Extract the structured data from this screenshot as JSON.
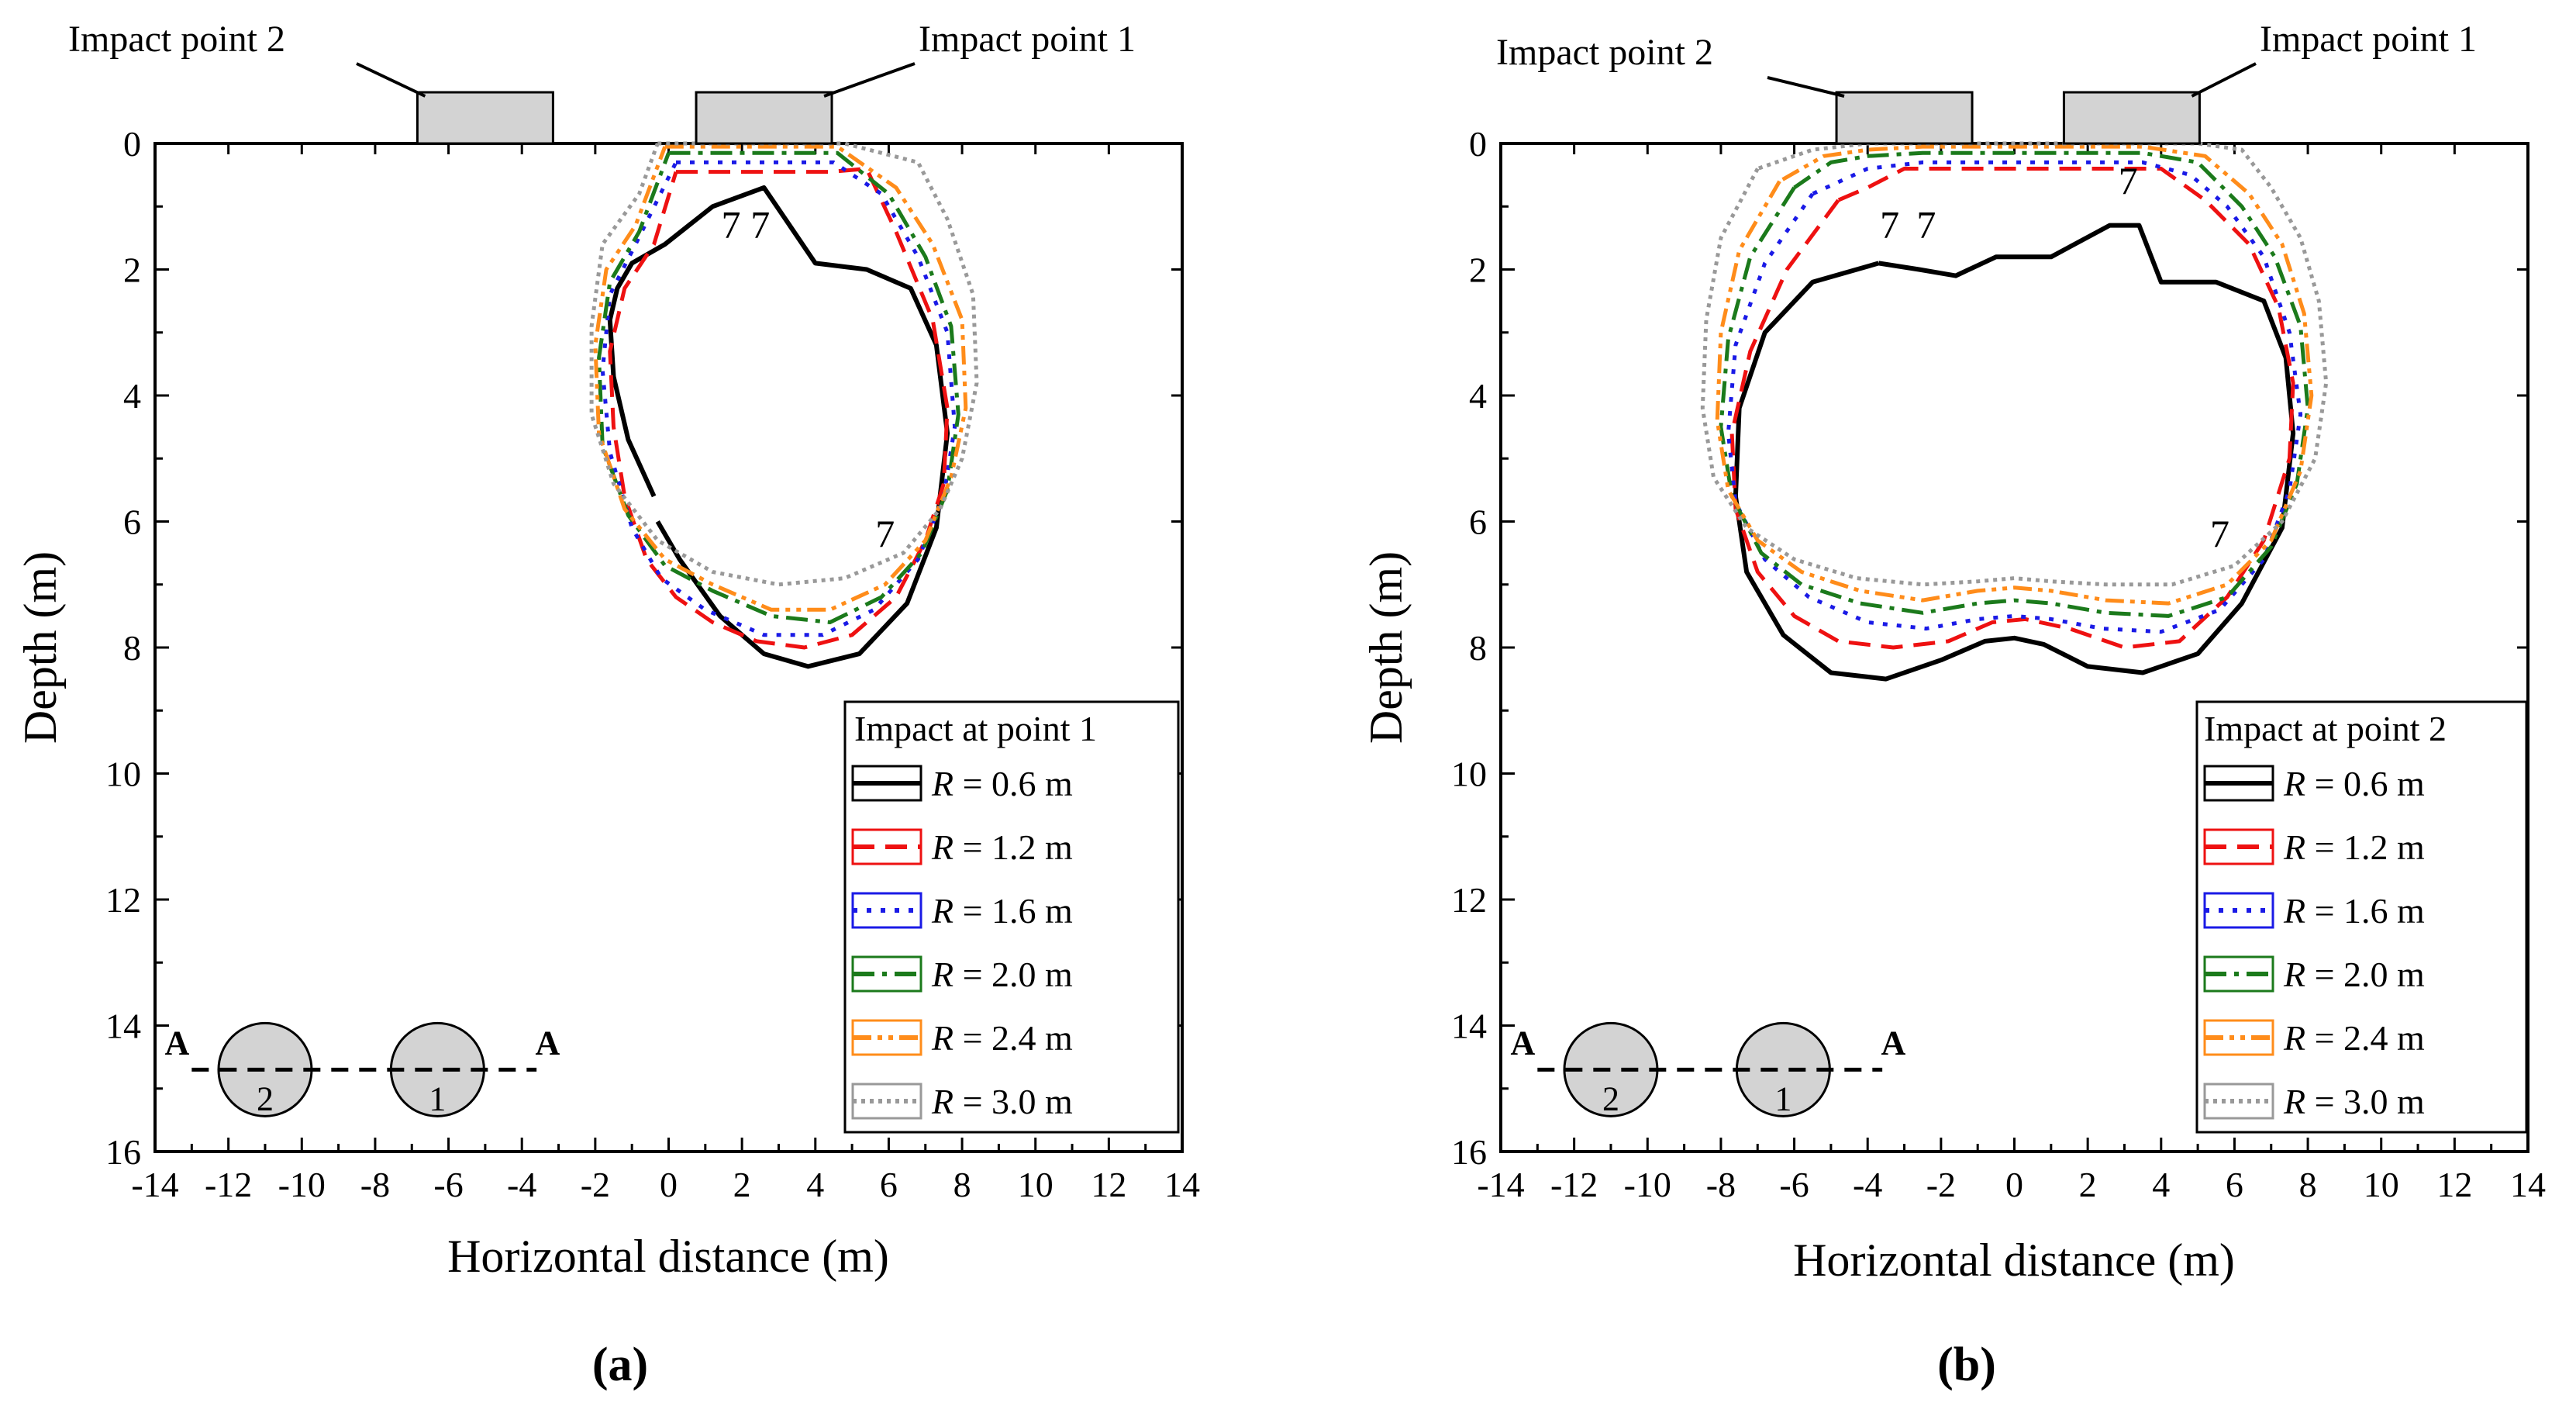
{
  "chart_data": [
    {
      "type": "line",
      "panel_label": "(a)",
      "xlabel": "Horizontal distance (m)",
      "ylabel": "Depth (m)",
      "xlim": [
        -14,
        14
      ],
      "ylim": [
        16,
        0
      ],
      "xticks": [
        -14,
        -12,
        -10,
        -8,
        -6,
        -4,
        -2,
        0,
        2,
        4,
        6,
        8,
        10,
        12,
        14
      ],
      "yticks": [
        0,
        2,
        4,
        6,
        8,
        10,
        12,
        14,
        16
      ],
      "tick_labels_x": [
        "-14",
        "-12",
        "-10",
        "-8",
        "-6",
        "-4",
        "-2",
        "0",
        "2",
        "4",
        "6",
        "8",
        "10",
        "12",
        "14"
      ],
      "tick_labels_y": [
        "0",
        "2",
        "4",
        "6",
        "8",
        "10",
        "12",
        "14",
        "16"
      ],
      "annotations": {
        "impact_point_1": "Impact point 1",
        "impact_point_2": "Impact point 2",
        "impact_point_1_x": 2.6,
        "impact_point_2_x": -5.0,
        "section_left": "A",
        "section_right": "A",
        "tunnel_1_label": "1",
        "tunnel_2_label": "2",
        "tunnel_1_x": -6.3,
        "tunnel_2_x": -11.0,
        "tunnel_depth": 14.7,
        "tunnel_1_label_color": "#e00000",
        "tunnel_2_label_color": "#000000",
        "contour_value": "7",
        "contour_labels": [
          [
            1.7,
            1.3
          ],
          [
            2.5,
            1.3
          ],
          [
            5.9,
            6.2
          ]
        ]
      },
      "legend": {
        "title": "Impact at point 1",
        "position": "bottom-right",
        "entries": [
          {
            "label": "= 0.6 m",
            "color": "#000000",
            "dash": "solid"
          },
          {
            "label": "= 1.2 m",
            "color": "#ee1111",
            "dash": "dash"
          },
          {
            "label": "= 1.6 m",
            "color": "#1a1ae6",
            "dash": "dot"
          },
          {
            "label": "= 2.0 m",
            "color": "#1b7a1b",
            "dash": "dashdot"
          },
          {
            "label": "= 2.4 m",
            "color": "#ff8c1a",
            "dash": "dashdotdot"
          },
          {
            "label": "= 3.0 m",
            "color": "#999999",
            "dash": "shortdot"
          }
        ]
      },
      "series": [
        {
          "name": "R = 0.6 m",
          "color": "#000000",
          "x": [
            -0.4,
            -1.1,
            -1.5,
            -1.6,
            -1.4,
            -1.0,
            -0.1,
            1.2,
            2.6,
            4.0,
            5.4,
            6.6,
            7.3,
            7.6,
            7.3,
            6.5,
            5.2,
            3.8,
            2.6,
            1.4,
            0.3,
            -0.3
          ],
          "y": [
            5.6,
            4.7,
            3.7,
            2.8,
            2.3,
            1.9,
            1.6,
            1.0,
            0.7,
            1.9,
            2.0,
            2.3,
            3.2,
            4.6,
            6.1,
            7.3,
            8.1,
            8.3,
            8.1,
            7.5,
            6.6,
            6.0
          ]
        },
        {
          "name": "R = 1.2 m",
          "color": "#ee1111",
          "x": [
            0.2,
            1.2,
            2.4,
            3.5,
            4.4,
            5.4,
            6.2,
            7.2,
            7.6,
            7.5,
            7.0,
            6.2,
            5.0,
            3.7,
            2.4,
            1.2,
            0.2,
            -0.6,
            -1.2,
            -1.5,
            -1.6,
            -1.2,
            -0.4,
            0.2
          ],
          "y": [
            0.45,
            0.45,
            0.45,
            0.45,
            0.45,
            0.4,
            1.4,
            2.8,
            4.2,
            5.4,
            6.3,
            7.2,
            7.8,
            8.0,
            7.9,
            7.6,
            7.2,
            6.6,
            5.6,
            4.5,
            3.3,
            2.3,
            1.6,
            0.45
          ]
        },
        {
          "name": "R = 1.6 m",
          "color": "#1a1ae6",
          "x": [
            0.2,
            1.5,
            3.0,
            4.5,
            5.8,
            6.8,
            7.6,
            7.8,
            7.5,
            6.8,
            5.6,
            4.2,
            2.6,
            1.0,
            -0.2,
            -1.0,
            -1.6,
            -1.8,
            -1.6,
            -0.9,
            0.2
          ],
          "y": [
            0.3,
            0.3,
            0.3,
            0.3,
            0.8,
            1.8,
            3.0,
            4.5,
            5.6,
            6.6,
            7.4,
            7.8,
            7.8,
            7.4,
            6.9,
            6.1,
            4.9,
            3.6,
            2.4,
            1.6,
            0.3
          ]
        },
        {
          "name": "R = 2.0 m",
          "color": "#1b7a1b",
          "x": [
            0.0,
            1.6,
            3.0,
            4.6,
            6.0,
            7.0,
            7.7,
            7.9,
            7.6,
            6.9,
            5.8,
            4.4,
            2.8,
            1.2,
            -0.1,
            -1.1,
            -1.8,
            -1.9,
            -1.6,
            -0.8,
            0.0
          ],
          "y": [
            0.15,
            0.15,
            0.15,
            0.15,
            0.8,
            1.8,
            2.9,
            4.3,
            5.5,
            6.5,
            7.2,
            7.6,
            7.5,
            7.1,
            6.7,
            5.9,
            4.8,
            3.4,
            2.2,
            1.4,
            0.15
          ]
        },
        {
          "name": "R = 2.4 m",
          "color": "#ff8c1a",
          "x": [
            -0.1,
            1.5,
            3.0,
            4.6,
            6.2,
            7.2,
            8.0,
            8.1,
            7.7,
            7.0,
            5.9,
            4.4,
            2.8,
            1.2,
            -0.1,
            -1.2,
            -1.9,
            -2.0,
            -1.7,
            -0.9,
            -0.1
          ],
          "y": [
            0.05,
            0.05,
            0.05,
            0.05,
            0.7,
            1.6,
            2.8,
            4.2,
            5.3,
            6.3,
            7.0,
            7.4,
            7.4,
            7.0,
            6.6,
            5.8,
            4.6,
            3.2,
            2.0,
            1.3,
            0.05
          ]
        },
        {
          "name": "R = 3.0 m",
          "color": "#999999",
          "x": [
            -0.3,
            1.5,
            3.0,
            4.8,
            6.8,
            7.6,
            8.3,
            8.4,
            8.0,
            7.4,
            6.4,
            4.8,
            3.0,
            1.2,
            -0.3,
            -1.5,
            -2.1,
            -2.1,
            -1.8,
            -0.8,
            -0.3
          ],
          "y": [
            0.0,
            0.0,
            0.0,
            0.0,
            0.3,
            1.2,
            2.4,
            3.8,
            5.0,
            5.8,
            6.5,
            6.9,
            7.0,
            6.8,
            6.3,
            5.4,
            4.3,
            2.9,
            1.6,
            0.8,
            0.0
          ]
        }
      ]
    },
    {
      "type": "line",
      "panel_label": "(b)",
      "xlabel": "Horizontal distance (m)",
      "ylabel": "Depth (m)",
      "xlim": [
        -14,
        14
      ],
      "ylim": [
        16,
        0
      ],
      "xticks": [
        -14,
        -12,
        -10,
        -8,
        -6,
        -4,
        -2,
        0,
        2,
        4,
        6,
        8,
        10,
        12,
        14
      ],
      "yticks": [
        0,
        2,
        4,
        6,
        8,
        10,
        12,
        14,
        16
      ],
      "tick_labels_x": [
        "-14",
        "-12",
        "-10",
        "-8",
        "-6",
        "-4",
        "-2",
        "0",
        "2",
        "4",
        "6",
        "8",
        "10",
        "12",
        "14"
      ],
      "tick_labels_y": [
        "0",
        "2",
        "4",
        "6",
        "8",
        "10",
        "12",
        "14",
        "16"
      ],
      "annotations": {
        "impact_point_1": "Impact point 1",
        "impact_point_2": "Impact point 2",
        "impact_point_1_x": 3.2,
        "impact_point_2_x": -3.0,
        "section_left": "A",
        "section_right": "A",
        "tunnel_1_label": "1",
        "tunnel_2_label": "2",
        "tunnel_1_x": -6.3,
        "tunnel_2_x": -11.0,
        "tunnel_depth": 14.7,
        "tunnel_1_label_color": "#e00000",
        "tunnel_2_label_color": "#e00000",
        "contour_value": "7",
        "contour_labels": [
          [
            -3.4,
            1.3
          ],
          [
            -2.4,
            1.3
          ],
          [
            3.1,
            0.6
          ],
          [
            5.6,
            6.2
          ]
        ]
      },
      "legend": {
        "title": "Impact at point 2",
        "position": "bottom-right",
        "entries": [
          {
            "label": "= 0.6 m",
            "color": "#000000",
            "dash": "solid"
          },
          {
            "label": "= 1.2 m",
            "color": "#ee1111",
            "dash": "dash"
          },
          {
            "label": "= 1.6 m",
            "color": "#1a1ae6",
            "dash": "dot"
          },
          {
            "label": "= 2.0 m",
            "color": "#1b7a1b",
            "dash": "dashdot"
          },
          {
            "label": "= 2.4 m",
            "color": "#ff8c1a",
            "dash": "dashdotdot"
          },
          {
            "label": "= 3.0 m",
            "color": "#999999",
            "dash": "shortdot"
          }
        ]
      },
      "series": [
        {
          "name": "R = 0.6 m",
          "color": "#000000",
          "x": [
            -3.7,
            -5.5,
            -6.8,
            -7.5,
            -7.6,
            -7.3,
            -6.3,
            -5.0,
            -3.5,
            -2.0,
            -0.8,
            0.0,
            0.8,
            2.0,
            3.5,
            5.0,
            6.2,
            7.3,
            7.6,
            7.4,
            6.8,
            5.5,
            4.0,
            3.4,
            2.6,
            1.0,
            -0.5,
            -1.6,
            -2.6,
            -3.7
          ],
          "y": [
            1.9,
            2.2,
            3.0,
            4.2,
            5.6,
            6.8,
            7.8,
            8.4,
            8.5,
            8.2,
            7.9,
            7.85,
            7.95,
            8.3,
            8.4,
            8.1,
            7.3,
            6.1,
            4.6,
            3.4,
            2.5,
            2.2,
            2.2,
            1.3,
            1.3,
            1.8,
            1.8,
            2.1,
            2.0,
            1.9
          ]
        },
        {
          "name": "R = 1.2 m",
          "color": "#ee1111",
          "x": [
            -4.8,
            -6.2,
            -7.2,
            -7.7,
            -7.6,
            -7.0,
            -6.0,
            -4.8,
            -3.3,
            -1.8,
            -0.6,
            0.3,
            1.5,
            3.0,
            4.5,
            5.8,
            6.8,
            7.5,
            7.6,
            7.2,
            6.4,
            5.2,
            4.0,
            3.0,
            2.0,
            1.0,
            0.0,
            -1.0,
            -2.0,
            -3.0,
            -4.0,
            -4.8
          ],
          "y": [
            0.9,
            2.0,
            3.3,
            4.6,
            5.8,
            6.8,
            7.5,
            7.9,
            8.0,
            7.9,
            7.6,
            7.55,
            7.7,
            8.0,
            7.9,
            7.2,
            6.3,
            5.0,
            3.8,
            2.6,
            1.6,
            0.9,
            0.4,
            0.4,
            0.4,
            0.4,
            0.4,
            0.4,
            0.4,
            0.4,
            0.7,
            0.9
          ]
        },
        {
          "name": "R = 1.6 m",
          "color": "#1a1ae6",
          "x": [
            -5.5,
            -6.8,
            -7.6,
            -7.8,
            -7.6,
            -6.8,
            -5.6,
            -4.0,
            -2.4,
            -1.0,
            0.0,
            1.0,
            2.4,
            4.0,
            5.6,
            6.8,
            7.5,
            7.8,
            7.5,
            6.8,
            5.8,
            4.8,
            3.5,
            2.0,
            0.5,
            -1.0,
            -2.5,
            -4.0,
            -5.5
          ],
          "y": [
            0.8,
            1.9,
            3.2,
            4.6,
            5.7,
            6.6,
            7.2,
            7.6,
            7.7,
            7.55,
            7.5,
            7.55,
            7.7,
            7.75,
            7.4,
            6.6,
            5.5,
            4.3,
            3.0,
            1.8,
            1.0,
            0.5,
            0.3,
            0.3,
            0.3,
            0.3,
            0.3,
            0.4,
            0.8
          ]
        },
        {
          "name": "R = 2.0 m",
          "color": "#1b7a1b",
          "x": [
            -6.0,
            -7.2,
            -7.8,
            -8.0,
            -7.7,
            -6.9,
            -5.8,
            -4.2,
            -2.5,
            -1.0,
            0.0,
            1.0,
            2.5,
            4.2,
            5.8,
            7.0,
            7.7,
            8.0,
            7.8,
            7.1,
            6.2,
            5.0,
            3.5,
            2.0,
            0.5,
            -1.0,
            -2.5,
            -4.0,
            -5.0,
            -6.0
          ],
          "y": [
            0.7,
            1.8,
            3.1,
            4.5,
            5.6,
            6.5,
            7.0,
            7.3,
            7.45,
            7.3,
            7.25,
            7.3,
            7.45,
            7.5,
            7.2,
            6.4,
            5.4,
            4.2,
            2.9,
            1.8,
            1.0,
            0.3,
            0.15,
            0.15,
            0.15,
            0.15,
            0.15,
            0.2,
            0.3,
            0.7
          ]
        },
        {
          "name": "R = 2.4 m",
          "color": "#ff8c1a",
          "x": [
            -6.4,
            -7.5,
            -8.0,
            -8.1,
            -7.8,
            -7.0,
            -5.8,
            -4.2,
            -2.5,
            -1.0,
            0.0,
            1.0,
            2.5,
            4.2,
            5.8,
            7.0,
            7.8,
            8.1,
            7.9,
            7.3,
            6.4,
            5.2,
            3.5,
            2.0,
            0.5,
            -1.0,
            -2.5,
            -4.0,
            -5.2,
            -6.4
          ],
          "y": [
            0.6,
            1.7,
            3.0,
            4.4,
            5.5,
            6.3,
            6.8,
            7.1,
            7.25,
            7.1,
            7.05,
            7.1,
            7.25,
            7.3,
            7.0,
            6.3,
            5.2,
            4.0,
            2.7,
            1.6,
            0.8,
            0.2,
            0.05,
            0.05,
            0.05,
            0.05,
            0.05,
            0.1,
            0.2,
            0.6
          ]
        },
        {
          "name": "R = 3.0 m",
          "color": "#999999",
          "x": [
            -7.0,
            -8.0,
            -8.4,
            -8.5,
            -8.2,
            -7.3,
            -6.0,
            -4.3,
            -2.5,
            -1.0,
            0.0,
            1.0,
            2.5,
            4.3,
            6.0,
            7.3,
            8.2,
            8.5,
            8.3,
            7.8,
            7.0,
            6.2,
            5.0,
            3.5,
            2.0,
            0.5,
            -1.0,
            -2.5,
            -4.0,
            -5.5,
            -7.0
          ],
          "y": [
            0.4,
            1.5,
            2.8,
            4.2,
            5.3,
            6.1,
            6.6,
            6.9,
            7.0,
            6.95,
            6.9,
            6.95,
            7.0,
            7.0,
            6.7,
            6.0,
            5.0,
            3.8,
            2.5,
            1.5,
            0.7,
            0.1,
            0.0,
            0.0,
            0.0,
            0.0,
            0.0,
            0.0,
            0.0,
            0.1,
            0.4
          ]
        }
      ]
    }
  ]
}
